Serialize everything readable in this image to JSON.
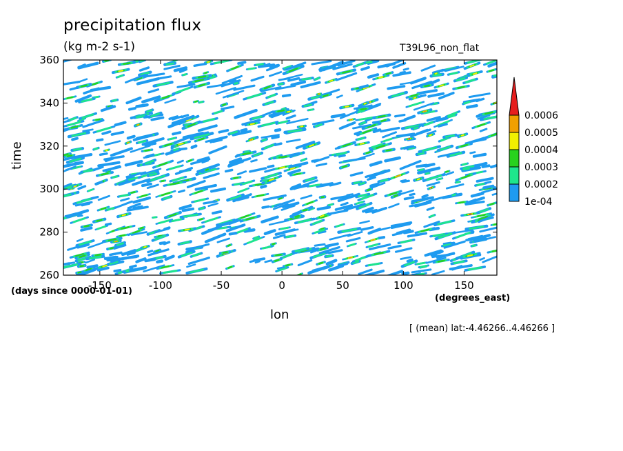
{
  "chart_data": {
    "type": "heatmap",
    "title": "precipitation flux",
    "units": "(kg m-2 s-1)",
    "run_name": "T39L96_non_flat",
    "xlabel": "lon",
    "x_units": "(degrees_east)",
    "ylabel": "time",
    "y_units": "(days since 0000-01-01)",
    "region_note": "[ (mean) lat:-4.46266..4.46266 ]",
    "xlim": [
      -180,
      177
    ],
    "ylim": [
      260,
      360
    ],
    "x_ticks": [
      -150,
      -100,
      -50,
      0,
      50,
      100,
      150
    ],
    "y_ticks": [
      260,
      280,
      300,
      320,
      340,
      360
    ],
    "colorbar": {
      "levels": [
        "1e-04",
        "0.0002",
        "0.0003",
        "0.0004",
        "0.0005",
        "0.0006"
      ],
      "colors": [
        "#1e9bf0",
        "#1ee68c",
        "#28d21e",
        "#f0f000",
        "#f0a000",
        "#e61e1e"
      ],
      "extend": "max"
    },
    "note": "Hovmoller diagram: eastward-propagating streaks of precipitation exceeding 1e-04 kg m-2 s-1"
  }
}
